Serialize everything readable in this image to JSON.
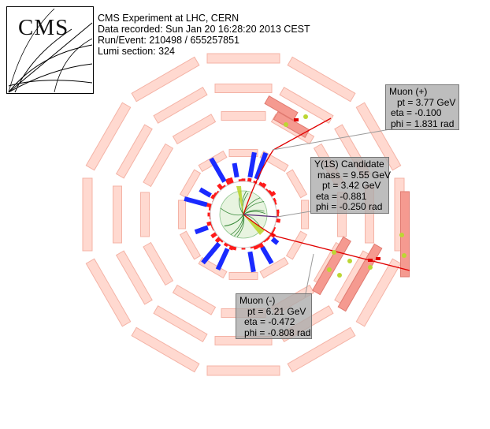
{
  "logo": {
    "text": "CMS"
  },
  "event_info": {
    "line1": "CMS Experiment at LHC, CERN",
    "line2": "Data recorded: Sun Jan 20 16:28:20 2013 CEST",
    "line3": "Run/Event: 210498 / 655257851",
    "line4": "Lumi section: 324"
  },
  "muon_plus": {
    "title": "Muon (+)",
    "pt": "pt = 3.77 GeV",
    "eta": "eta = -0.100",
    "phi": "phi = 1.831 rad"
  },
  "upsilon": {
    "title": "Y(1S) Candidate",
    "mass": "mass = 9.55 GeV",
    "pt": "pt = 3.42 GeV",
    "eta": "eta = -0.881",
    "phi": "phi = -0.250 rad"
  },
  "muon_minus": {
    "title": "Muon (-)",
    "pt": "pt = 6.21 GeV",
    "eta": "eta = -0.472",
    "phi": "phi = -0.808 rad"
  },
  "colors": {
    "muon_chamber": "#ffd9d0",
    "muon_chamber_edge": "#f4b3a6",
    "hit_chamber": "#f59a90",
    "ecal": "#ff1a1a",
    "hcal": "#1a2aff",
    "tracker": "#8cc48c",
    "muon_track": "#e00000",
    "hit_point": "#bcd633"
  }
}
